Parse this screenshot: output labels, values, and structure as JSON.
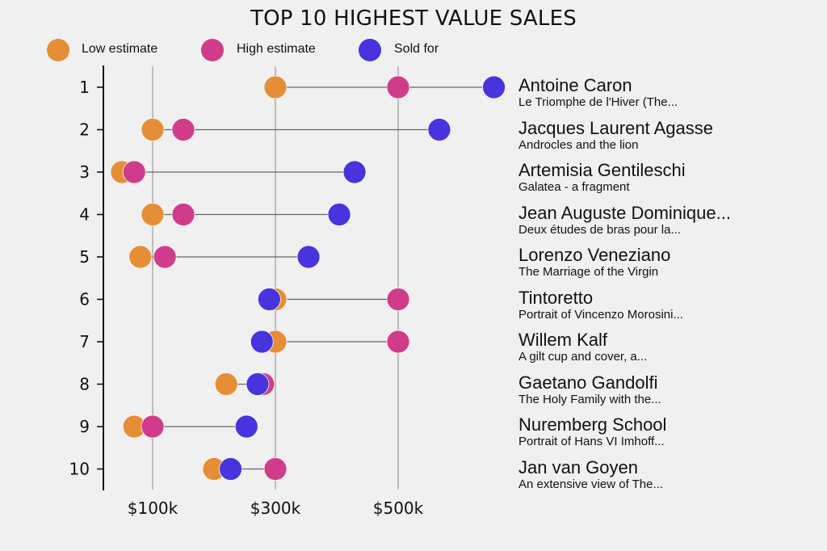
{
  "chart_data": {
    "type": "dot-range",
    "title": "TOP 10 HIGHEST VALUE SALES",
    "xlabel": "",
    "ylabel": "",
    "xlim": [
      20,
      690
    ],
    "x_ticks": [
      100,
      300,
      500
    ],
    "x_tick_labels": [
      "$100k",
      "$300k",
      "$500k"
    ],
    "grid": "vertical",
    "legend_position": "top-left",
    "colors": {
      "low": "#E68E35",
      "high": "#D13C8A",
      "sold": "#4834DE",
      "connector": "#666666",
      "grid": "#b0b0b0",
      "axis": "#111111"
    },
    "legend": [
      {
        "key": "low",
        "label": "Low estimate"
      },
      {
        "key": "high",
        "label": "High estimate"
      },
      {
        "key": "sold",
        "label": "Sold for"
      }
    ],
    "series_units": "thousands USD",
    "rows": [
      {
        "rank": "1",
        "artist": "Antoine Caron",
        "work": "Le Triomphe de l'Hiver (The...",
        "low": 300,
        "high": 500,
        "sold": 656
      },
      {
        "rank": "2",
        "artist": "Jacques Laurent Agasse",
        "work": "Androcles and the lion",
        "low": 100,
        "high": 150,
        "sold": 567
      },
      {
        "rank": "3",
        "artist": "Artemisia Gentileschi",
        "work": "Galatea - a fragment",
        "low": 50,
        "high": 70,
        "sold": 429
      },
      {
        "rank": "4",
        "artist": "Jean Auguste Dominique...",
        "work": "Deux études de bras pour la...",
        "low": 100,
        "high": 150,
        "sold": 404
      },
      {
        "rank": "5",
        "artist": "Lorenzo Veneziano",
        "work": "The Marriage of the Virgin",
        "low": 80,
        "high": 120,
        "sold": 354
      },
      {
        "rank": "6",
        "artist": "Tintoretto",
        "work": "Portrait of Vincenzo Morosini...",
        "low": 300,
        "high": 500,
        "sold": 290
      },
      {
        "rank": "7",
        "artist": "Willem Kalf",
        "work": "A gilt cup and cover, a...",
        "low": 300,
        "high": 500,
        "sold": 278
      },
      {
        "rank": "8",
        "artist": "Gaetano Gandolfi",
        "work": "The Holy Family with the...",
        "low": 220,
        "high": 280,
        "sold": 271
      },
      {
        "rank": "9",
        "artist": "Nuremberg School",
        "work": "Portrait of Hans VI Imhoff...",
        "low": 70,
        "high": 100,
        "sold": 253
      },
      {
        "rank": "10",
        "artist": "Jan van Goyen",
        "work": "An extensive view of The...",
        "low": 200,
        "high": 300,
        "sold": 227
      }
    ]
  }
}
